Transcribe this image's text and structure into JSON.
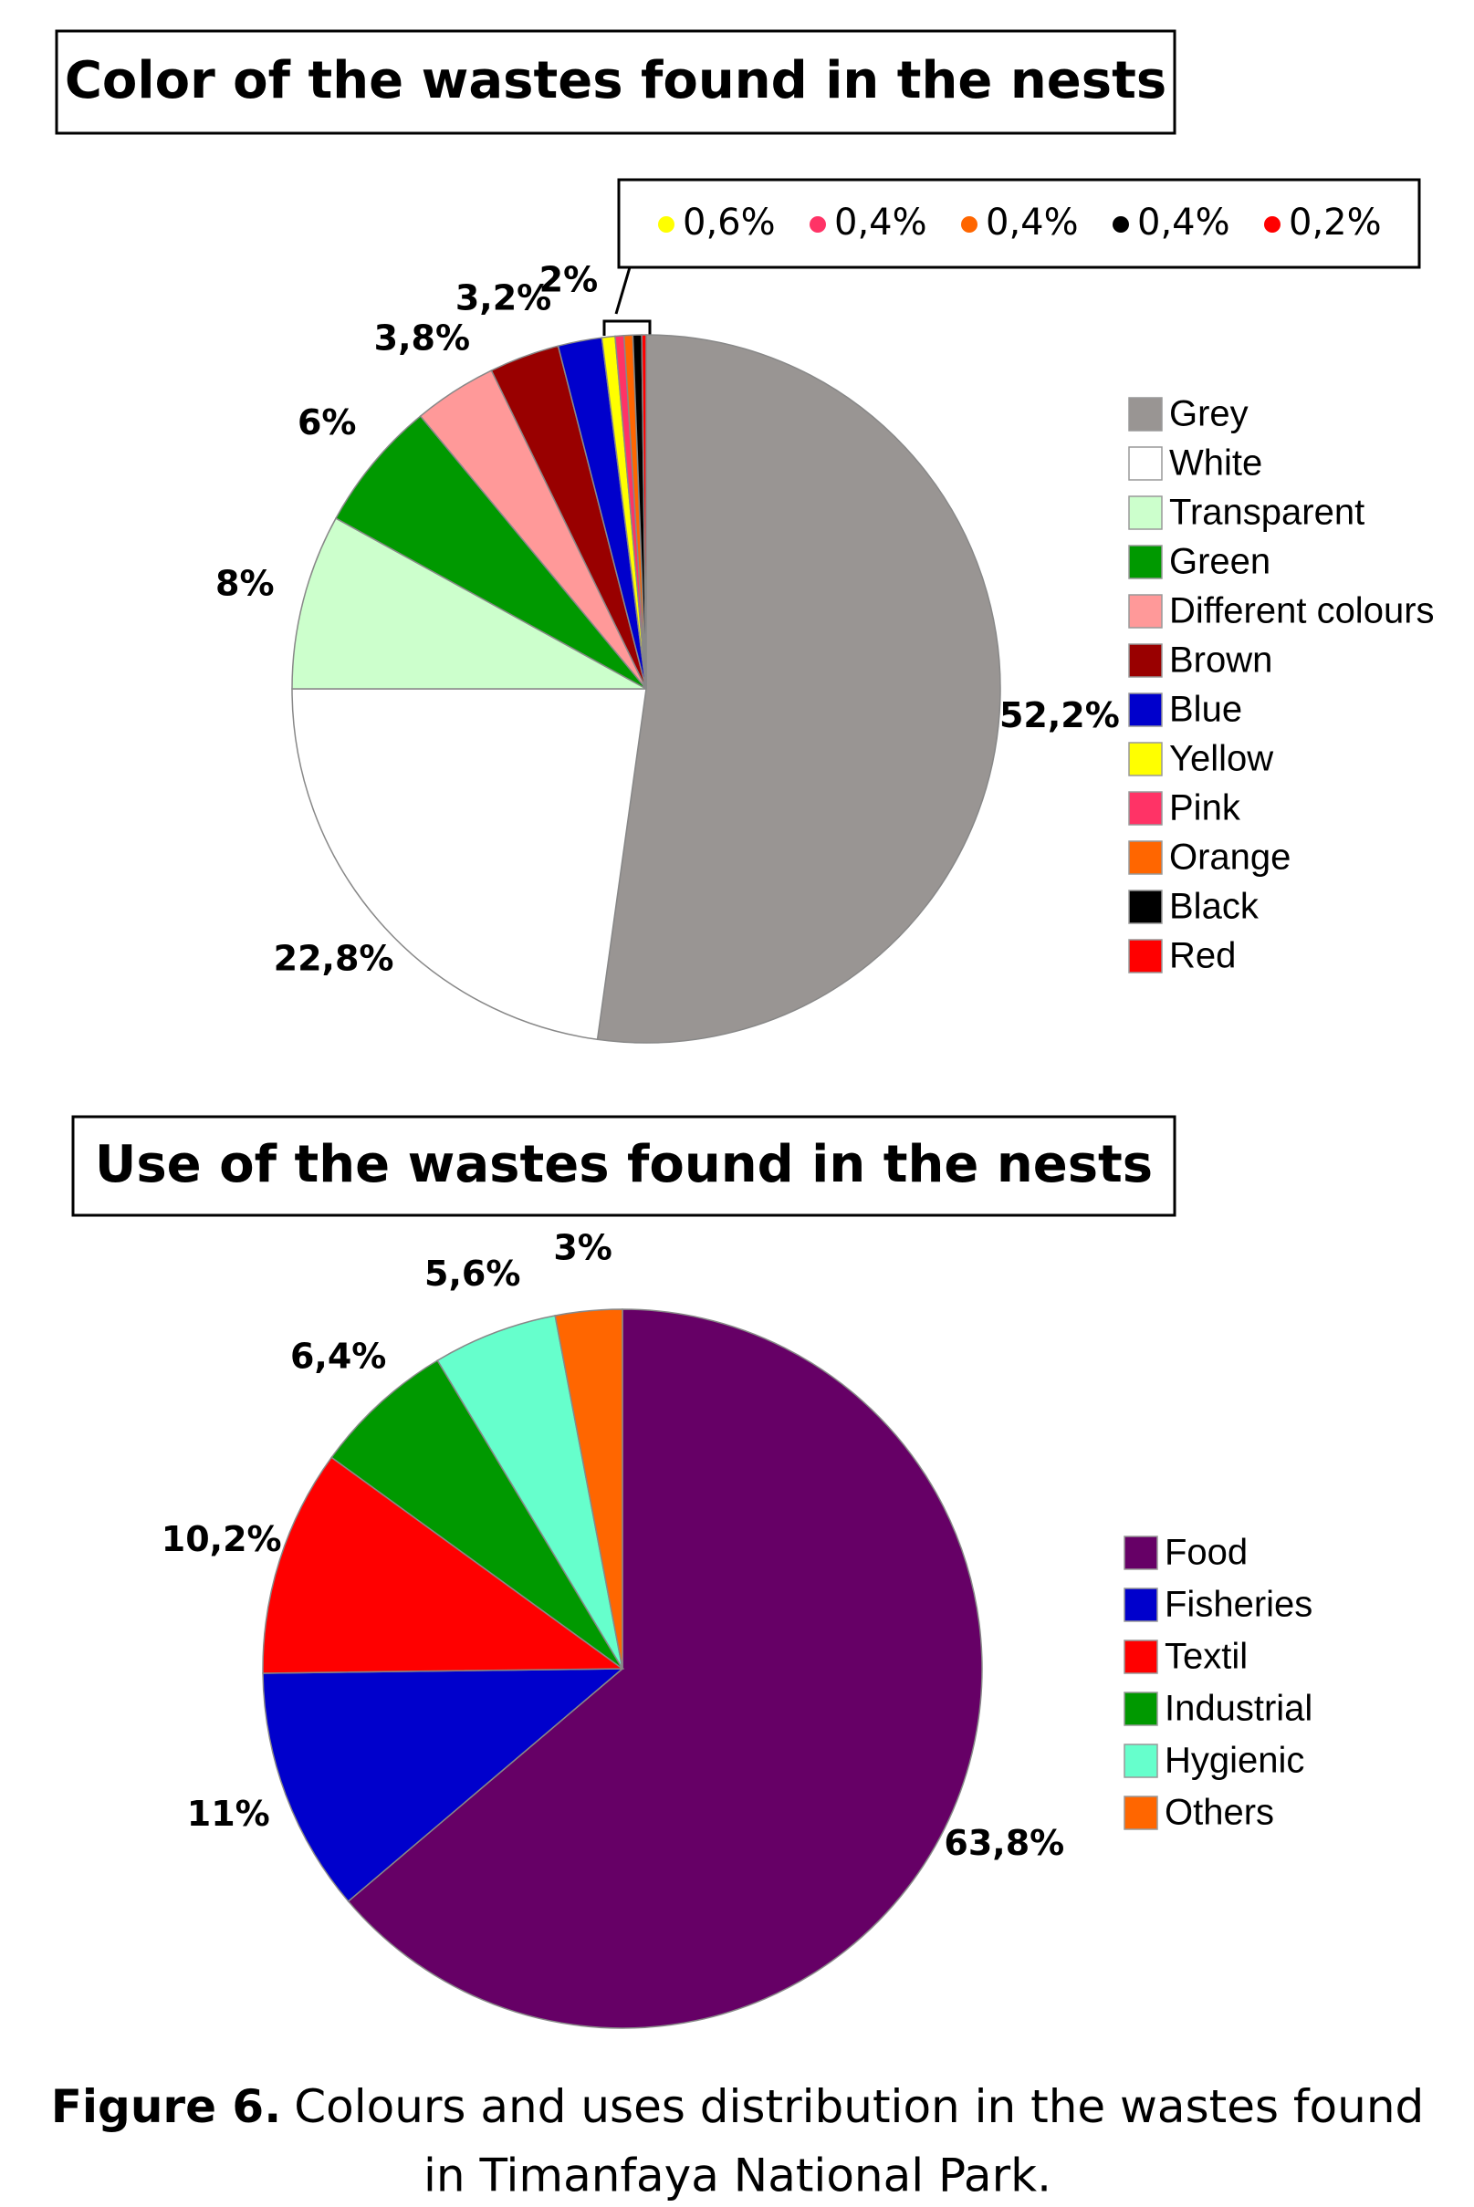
{
  "chart_data": [
    {
      "type": "pie",
      "title": "Color of the wastes found in the nests",
      "categories": [
        "Grey",
        "White",
        "Transparent",
        "Green",
        "Different colours",
        "Brown",
        "Blue",
        "Yellow",
        "Pink",
        "Orange",
        "Black",
        "Red"
      ],
      "values": [
        52.2,
        22.8,
        8,
        6,
        3.8,
        3.2,
        2,
        0.6,
        0.4,
        0.4,
        0.4,
        0.2
      ],
      "value_labels": [
        "52,2%",
        "22,8%",
        "8%",
        "6%",
        "3,8%",
        "3,2%",
        "2%",
        "0,6%",
        "0,4%",
        "0,4%",
        "0,4%",
        "0,2%"
      ],
      "colors": [
        "#999593",
        "#ffffff",
        "#ccffcc",
        "#009900",
        "#ff9999",
        "#990000",
        "#0000cc",
        "#ffff00",
        "#ff3366",
        "#ff6600",
        "#000000",
        "#ff0000"
      ]
    },
    {
      "type": "pie",
      "title": "Use of the wastes found in the nests",
      "categories": [
        "Food",
        "Fisheries",
        "Textil",
        "Industrial",
        "Hygienic",
        "Others"
      ],
      "values": [
        63.8,
        11,
        10.2,
        6.4,
        5.6,
        3
      ],
      "value_labels": [
        "63,8%",
        "11%",
        "10,2%",
        "6,4%",
        "5,6%",
        "3%"
      ],
      "colors": [
        "#660066",
        "#0000cc",
        "#ff0000",
        "#009900",
        "#66ffcc",
        "#ff6600"
      ]
    }
  ],
  "caption": {
    "label": "Figure 6.",
    "lines": [
      "Colours and uses distribution in the wastes found",
      "in Timanfaya National Park."
    ]
  }
}
